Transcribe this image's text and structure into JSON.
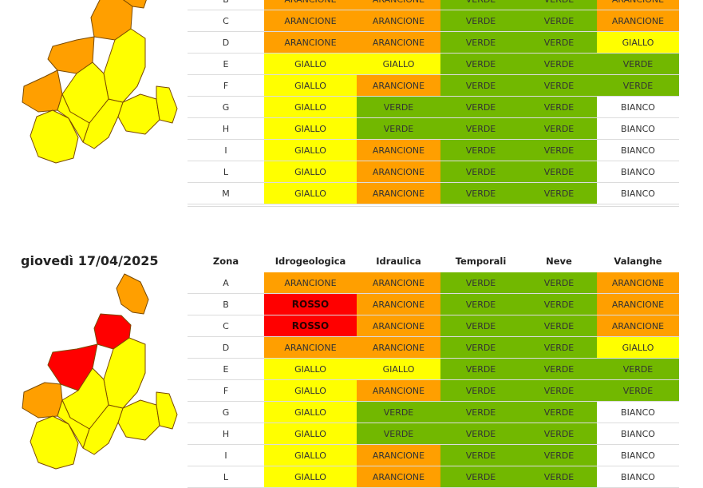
{
  "columns": [
    "Zona",
    "Idrogeologica",
    "Idraulica",
    "Temporali",
    "Neve",
    "Valanghe"
  ],
  "colors": {
    "ARANCIONE": "#ff9f00",
    "VERDE": "#72b800",
    "GIALLO": "#ffff00",
    "BIANCO": "#ffffff",
    "ROSSO": "#ff0000"
  },
  "days": [
    {
      "title": "",
      "rows": [
        {
          "zone": "B",
          "values": [
            "ARANCIONE",
            "ARANCIONE",
            "VERDE",
            "VERDE",
            "ARANCIONE"
          ]
        },
        {
          "zone": "C",
          "values": [
            "ARANCIONE",
            "ARANCIONE",
            "VERDE",
            "VERDE",
            "ARANCIONE"
          ]
        },
        {
          "zone": "D",
          "values": [
            "ARANCIONE",
            "ARANCIONE",
            "VERDE",
            "VERDE",
            "GIALLO"
          ]
        },
        {
          "zone": "E",
          "values": [
            "GIALLO",
            "GIALLO",
            "VERDE",
            "VERDE",
            "VERDE"
          ]
        },
        {
          "zone": "F",
          "values": [
            "GIALLO",
            "ARANCIONE",
            "VERDE",
            "VERDE",
            "VERDE"
          ]
        },
        {
          "zone": "G",
          "values": [
            "GIALLO",
            "VERDE",
            "VERDE",
            "VERDE",
            "BIANCO"
          ]
        },
        {
          "zone": "H",
          "values": [
            "GIALLO",
            "VERDE",
            "VERDE",
            "VERDE",
            "BIANCO"
          ]
        },
        {
          "zone": "I",
          "values": [
            "GIALLO",
            "ARANCIONE",
            "VERDE",
            "VERDE",
            "BIANCO"
          ]
        },
        {
          "zone": "L",
          "values": [
            "GIALLO",
            "ARANCIONE",
            "VERDE",
            "VERDE",
            "BIANCO"
          ]
        },
        {
          "zone": "M",
          "values": [
            "GIALLO",
            "ARANCIONE",
            "VERDE",
            "VERDE",
            "BIANCO"
          ]
        }
      ]
    },
    {
      "title": "giovedì 17/04/2025",
      "rows": [
        {
          "zone": "A",
          "values": [
            "ARANCIONE",
            "ARANCIONE",
            "VERDE",
            "VERDE",
            "ARANCIONE"
          ]
        },
        {
          "zone": "B",
          "values": [
            "ROSSO",
            "ARANCIONE",
            "VERDE",
            "VERDE",
            "ARANCIONE"
          ]
        },
        {
          "zone": "C",
          "values": [
            "ROSSO",
            "ARANCIONE",
            "VERDE",
            "VERDE",
            "ARANCIONE"
          ]
        },
        {
          "zone": "D",
          "values": [
            "ARANCIONE",
            "ARANCIONE",
            "VERDE",
            "VERDE",
            "GIALLO"
          ]
        },
        {
          "zone": "E",
          "values": [
            "GIALLO",
            "GIALLO",
            "VERDE",
            "VERDE",
            "VERDE"
          ]
        },
        {
          "zone": "F",
          "values": [
            "GIALLO",
            "ARANCIONE",
            "VERDE",
            "VERDE",
            "VERDE"
          ]
        },
        {
          "zone": "G",
          "values": [
            "GIALLO",
            "VERDE",
            "VERDE",
            "VERDE",
            "BIANCO"
          ]
        },
        {
          "zone": "H",
          "values": [
            "GIALLO",
            "VERDE",
            "VERDE",
            "VERDE",
            "BIANCO"
          ]
        },
        {
          "zone": "I",
          "values": [
            "GIALLO",
            "ARANCIONE",
            "VERDE",
            "VERDE",
            "BIANCO"
          ]
        },
        {
          "zone": "L",
          "values": [
            "GIALLO",
            "ARANCIONE",
            "VERDE",
            "VERDE",
            "BIANCO"
          ]
        }
      ]
    }
  ],
  "maps": [
    {
      "zones": {
        "A": "ARANCIONE",
        "B": "ARANCIONE",
        "C": "ARANCIONE",
        "D": "ARANCIONE",
        "E": "GIALLO",
        "F": "GIALLO",
        "G": "GIALLO",
        "H": "GIALLO",
        "I": "GIALLO",
        "L": "GIALLO",
        "M": "GIALLO"
      }
    },
    {
      "zones": {
        "A": "ARANCIONE",
        "B": "ROSSO",
        "C": "ROSSO",
        "D": "ARANCIONE",
        "E": "GIALLO",
        "F": "GIALLO",
        "G": "GIALLO",
        "H": "GIALLO",
        "I": "GIALLO",
        "L": "GIALLO",
        "M": "GIALLO"
      }
    }
  ]
}
